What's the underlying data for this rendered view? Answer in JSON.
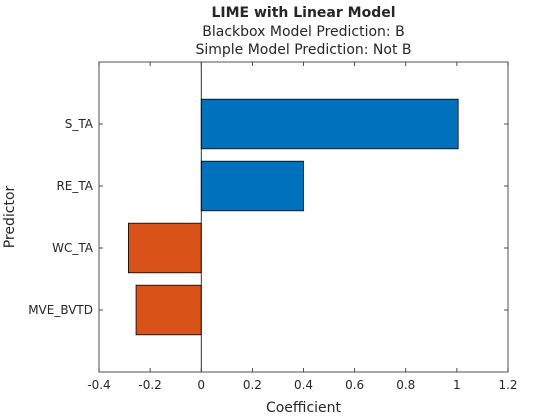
{
  "chart_data": {
    "type": "bar",
    "orientation": "horizontal",
    "title": "LIME with Linear Model",
    "subtitle_lines": [
      "Blackbox Model Prediction: B",
      "Simple Model Prediction: Not B"
    ],
    "xlabel": "Coefficient",
    "ylabel": "Predictor",
    "categories": [
      "S_TA",
      "RE_TA",
      "WC_TA",
      "MVE_BVTD"
    ],
    "values": [
      1.005,
      0.4,
      -0.285,
      -0.255
    ],
    "xlim": [
      -0.4,
      1.2
    ],
    "xticks": [
      -0.4,
      -0.2,
      0,
      0.2,
      0.4,
      0.6,
      0.8,
      1,
      1.2
    ],
    "xtick_labels": [
      "-0.4",
      "-0.2",
      "0",
      "0.2",
      "0.4",
      "0.6",
      "0.8",
      "1",
      "1.2"
    ],
    "colors": {
      "positive": "#0072BD",
      "negative": "#D95319",
      "edge": "#000000",
      "axis": "#262626"
    },
    "grid": false,
    "legend": "none",
    "zero_line": true
  }
}
